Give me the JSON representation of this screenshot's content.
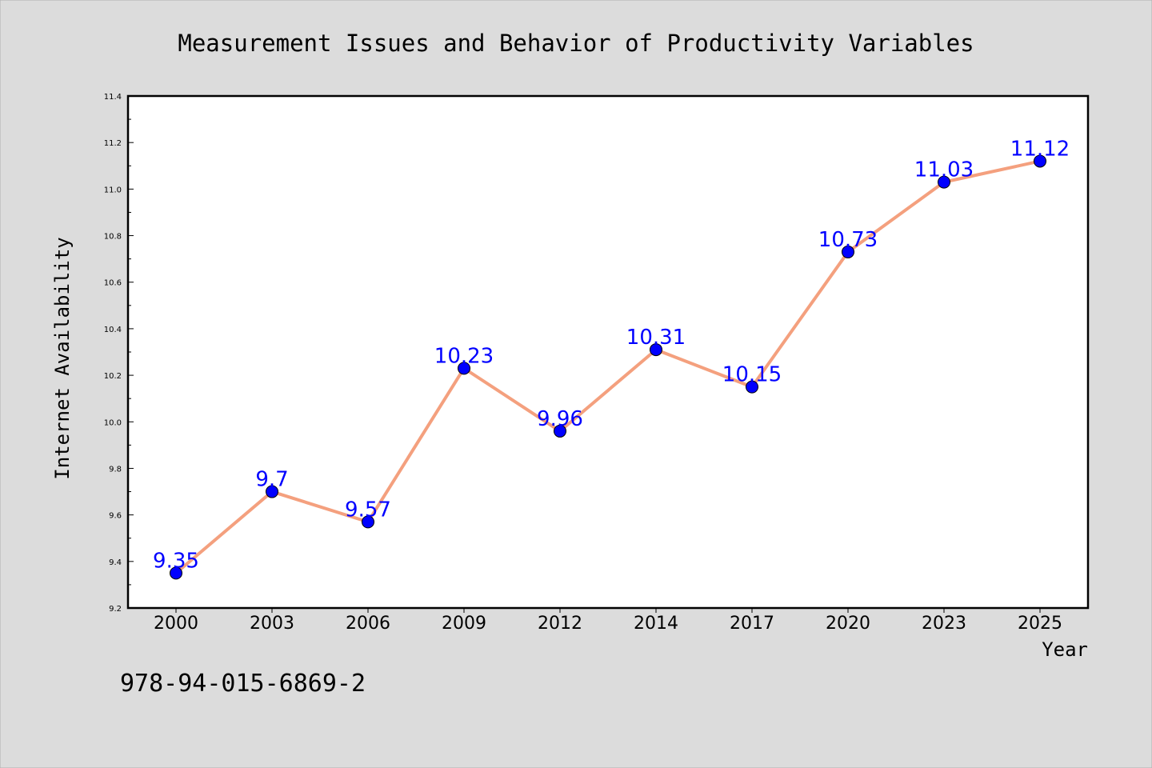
{
  "chart_data": {
    "type": "line",
    "title": "Measurement Issues and Behavior of Productivity Variables",
    "xlabel": "Year",
    "ylabel": "Internet Availability",
    "categories": [
      "2000",
      "2003",
      "2006",
      "2009",
      "2012",
      "2014",
      "2017",
      "2020",
      "2023",
      "2025"
    ],
    "series": [
      {
        "values": [
          9.35,
          9.7,
          9.57,
          10.23,
          9.96,
          10.31,
          10.15,
          10.73,
          11.03,
          11.12
        ]
      }
    ],
    "data_labels": [
      "9.35",
      "9.7",
      "9.57",
      "10.23",
      "9.96",
      "10.31",
      "10.15",
      "10.73",
      "11.03",
      "11.12"
    ],
    "ylim": [
      9.2,
      11.4
    ],
    "y_ticks": [
      "9.2",
      "9.4",
      "9.6",
      "9.8",
      "10.0",
      "10.2",
      "10.4",
      "10.6",
      "10.8",
      "11.0",
      "11.2",
      "11.4"
    ],
    "grid": false,
    "legend": "none",
    "colors": {
      "background": "#dcdcdc",
      "plot_background": "#ffffff",
      "line": "#f4a07e",
      "marker": "#0000ff",
      "data_label": "#0000ff",
      "text": "#000000"
    },
    "footer_note": "978-94-015-6869-2"
  }
}
